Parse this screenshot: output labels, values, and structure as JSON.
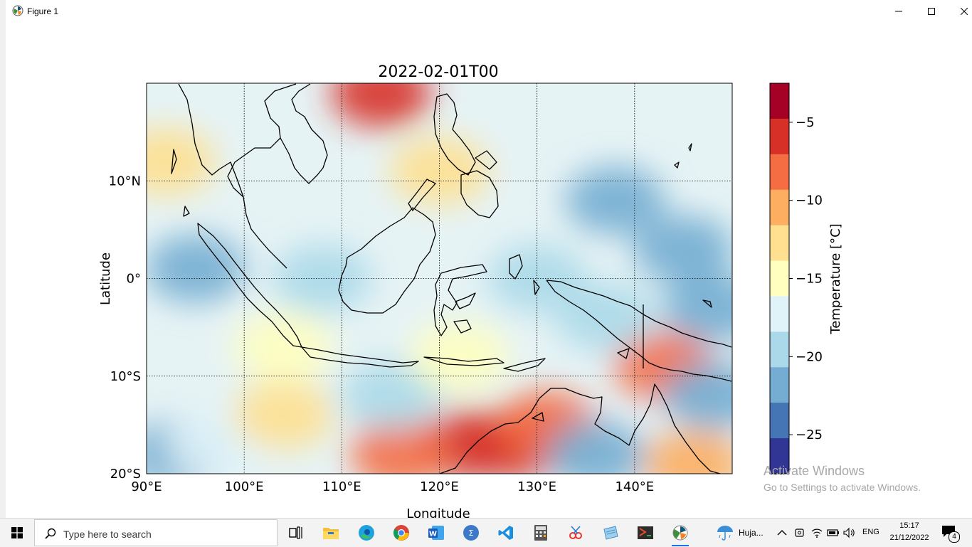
{
  "window": {
    "title": "Figure 1"
  },
  "chart_data": {
    "type": "heatmap",
    "title": "2022-02-01T00",
    "xlabel": "Longitude",
    "ylabel": "Latitude",
    "xlim": [
      90,
      150
    ],
    "ylim": [
      -20,
      20
    ],
    "x_ticks": [
      90,
      100,
      110,
      120,
      130,
      140
    ],
    "x_tick_labels": [
      "90°E",
      "100°E",
      "110°E",
      "120°E",
      "130°E",
      "140°E"
    ],
    "y_ticks": [
      10,
      0,
      -10,
      -20
    ],
    "y_tick_labels": [
      "10°N",
      "0°",
      "10°S",
      "20°S"
    ],
    "grid": "dotted",
    "colorbar": {
      "label": "Temperature [°C]",
      "range": [
        -27.5,
        -2.5
      ],
      "ticks": [
        -5,
        -10,
        -15,
        -20,
        -25
      ],
      "tick_labels": [
        "−5",
        "−10",
        "−15",
        "−20",
        "−25"
      ],
      "colors": [
        "#313695",
        "#4575b4",
        "#74add1",
        "#abd9e9",
        "#e0f3f8",
        "#ffffbf",
        "#fee090",
        "#fdae61",
        "#f46d43",
        "#d73027",
        "#a50026"
      ]
    },
    "field_blobs": [
      {
        "lon": 114,
        "lat": 19,
        "val": -7
      },
      {
        "lon": 120,
        "lat": 11,
        "val": -12
      },
      {
        "lon": 92,
        "lat": 12,
        "val": -13
      },
      {
        "lon": 128,
        "lat": -17,
        "val": -6
      },
      {
        "lon": 123,
        "lat": -17,
        "val": -7
      },
      {
        "lon": 116,
        "lat": -18,
        "val": -8
      },
      {
        "lon": 131,
        "lat": -15,
        "val": -8
      },
      {
        "lon": 143,
        "lat": -9,
        "val": -9
      },
      {
        "lon": 146,
        "lat": -19,
        "val": -11
      },
      {
        "lon": 93,
        "lat": -18,
        "val": -22
      },
      {
        "lon": 97,
        "lat": -17,
        "val": -18
      },
      {
        "lon": 145,
        "lat": 3,
        "val": -22
      },
      {
        "lon": 138,
        "lat": 8,
        "val": -22
      },
      {
        "lon": 148,
        "lat": -3,
        "val": -21
      },
      {
        "lon": 95,
        "lat": 1,
        "val": -21
      },
      {
        "lon": 108,
        "lat": 0,
        "val": -20
      },
      {
        "lon": 130,
        "lat": 0,
        "val": -20
      },
      {
        "lon": 137,
        "lat": -4,
        "val": -20
      },
      {
        "lon": 148,
        "lat": -12,
        "val": -22
      },
      {
        "lon": 136,
        "lat": -18,
        "val": -21
      },
      {
        "lon": 115,
        "lat": -12,
        "val": -19
      },
      {
        "lon": 104,
        "lat": -14,
        "val": -13
      },
      {
        "lon": 122,
        "lat": -8,
        "val": -15
      },
      {
        "lon": 104,
        "lat": -7,
        "val": -14
      }
    ]
  },
  "desktop_watermark": {
    "line1": "Activate Windows",
    "line2": "Go to Settings to activate Windows."
  },
  "taskbar": {
    "search_placeholder": "Type here to search",
    "apps": [
      "task-view-icon",
      "file-explorer-icon",
      "edge-icon",
      "chrome-icon",
      "word-icon",
      "calculator-app-icon",
      "vscode-icon",
      "calculator-icon",
      "snipping-tool-icon",
      "notes-icon",
      "terminal-icon",
      "python-figure-icon"
    ],
    "weather": "Huja...",
    "language": "ENG",
    "time": "15:17",
    "date": "21/12/2022",
    "notification_count": "4"
  }
}
